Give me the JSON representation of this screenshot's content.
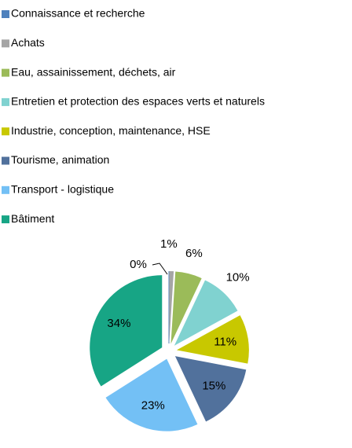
{
  "chart_data": {
    "type": "pie",
    "categories": [
      "Connaissance et recherche",
      "Achats",
      "Eau, assainissement, déchets, air",
      "Entretien et protection des espaces verts et naturels",
      "Industrie, conception,  maintenance, HSE",
      "Tourisme, animation",
      "Transport - logistique",
      "Bâtiment"
    ],
    "values": [
      0,
      1,
      6,
      10,
      11,
      15,
      23,
      34
    ],
    "value_labels": [
      "0%",
      "1%",
      "6%",
      "10%",
      "11%",
      "15%",
      "23%",
      "34%"
    ],
    "colors": [
      "#4f81bd",
      "#a5a5a5",
      "#9bbb59",
      "#80d2d0",
      "#c8c800",
      "#51719c",
      "#73c0f5",
      "#17a585"
    ],
    "legend": "top"
  }
}
